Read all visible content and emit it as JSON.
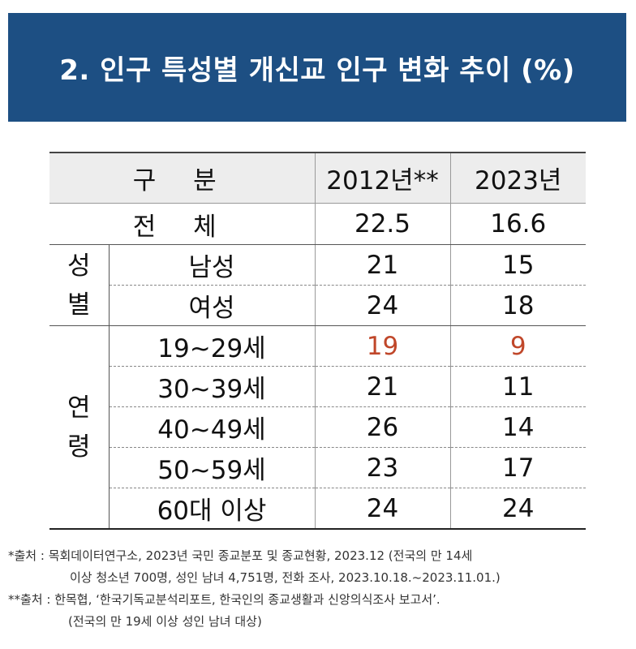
{
  "title": "2. 인구 특성별 개신교 인구 변화 추이 (%)",
  "table": {
    "header": {
      "category": "구 분",
      "col1": "2012년**",
      "col2": "2023년"
    },
    "total": {
      "label": "전 체",
      "v2012": "22.5",
      "v2023": "16.6"
    },
    "gender_group": "성\n별",
    "gender_rows": [
      {
        "label": "남성",
        "v2012": "21",
        "v2023": "15"
      },
      {
        "label": "여성",
        "v2012": "24",
        "v2023": "18"
      }
    ],
    "age_group": "연\n령",
    "age_rows": [
      {
        "label": "19~29세",
        "v2012": "19",
        "v2023": "9",
        "highlight": true
      },
      {
        "label": "30~39세",
        "v2012": "21",
        "v2023": "11"
      },
      {
        "label": "40~49세",
        "v2012": "26",
        "v2023": "14"
      },
      {
        "label": "50~59세",
        "v2012": "23",
        "v2023": "17"
      },
      {
        "label": "60대 이상",
        "v2012": "24",
        "v2023": "24"
      }
    ],
    "highlight_color": "#c0472a",
    "header_bg": "#ededed"
  },
  "notes": {
    "line1": "*출처 : 목회데이터연구소, 2023년 국민 종교분포 및 종교현황, 2023.12 (전국의 만 14세",
    "line2": "이상 청소년 700명, 성인 남녀 4,751명, 전화 조사, 2023.10.18.~2023.11.01.)",
    "line3": "**출처 : 한목협, ‘한국기독교분석리포트, 한국인의 종교생활과 신앙의식조사 보고서’.",
    "line4": "(전국의 만 19세 이상 성인 남녀 대상)"
  },
  "colors": {
    "title_bg": "#1d4f83",
    "title_text": "#ffffff"
  }
}
